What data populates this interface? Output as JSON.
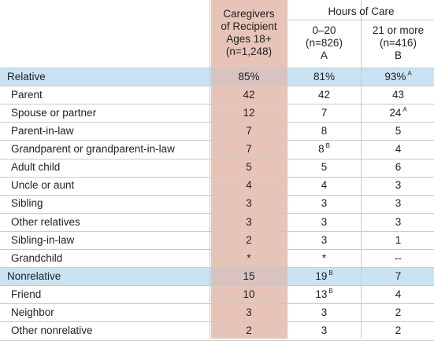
{
  "header": {
    "caregivers": [
      "Caregivers",
      "of Recipient",
      "Ages 18+",
      "(n=1,248)"
    ],
    "hours_group": "Hours of Care",
    "col_a": [
      "0–20",
      "(n=826)",
      "A"
    ],
    "col_b": [
      "21 or more",
      "(n=416)",
      "B"
    ]
  },
  "rows": [
    {
      "label": "Relative",
      "v1": "85%",
      "v2": "81%",
      "v2s": "",
      "v3": "93%",
      "v3s": "A",
      "group": true
    },
    {
      "label": "Parent",
      "v1": "42",
      "v2": "42",
      "v2s": "",
      "v3": "43",
      "v3s": "",
      "group": false
    },
    {
      "label": "Spouse or partner",
      "v1": "12",
      "v2": "7",
      "v2s": "",
      "v3": "24",
      "v3s": "A",
      "group": false
    },
    {
      "label": "Parent-in-law",
      "v1": "7",
      "v2": "8",
      "v2s": "",
      "v3": "5",
      "v3s": "",
      "group": false
    },
    {
      "label": "Grandparent or grandparent-in-law",
      "v1": "7",
      "v2": "8",
      "v2s": "B",
      "v3": "4",
      "v3s": "",
      "group": false
    },
    {
      "label": "Adult child",
      "v1": "5",
      "v2": "5",
      "v2s": "",
      "v3": "6",
      "v3s": "",
      "group": false
    },
    {
      "label": "Uncle or aunt",
      "v1": "4",
      "v2": "4",
      "v2s": "",
      "v3": "3",
      "v3s": "",
      "group": false
    },
    {
      "label": "Sibling",
      "v1": "3",
      "v2": "3",
      "v2s": "",
      "v3": "3",
      "v3s": "",
      "group": false
    },
    {
      "label": "Other relatives",
      "v1": "3",
      "v2": "3",
      "v2s": "",
      "v3": "3",
      "v3s": "",
      "group": false
    },
    {
      "label": "Sibling-in-law",
      "v1": "2",
      "v2": "3",
      "v2s": "",
      "v3": "1",
      "v3s": "",
      "group": false
    },
    {
      "label": "Grandchild",
      "v1": "*",
      "v2": "*",
      "v2s": "",
      "v3": "--",
      "v3s": "",
      "group": false
    },
    {
      "label": "Nonrelative",
      "v1": "15",
      "v2": "19",
      "v2s": "B",
      "v3": "7",
      "v3s": "",
      "group": true
    },
    {
      "label": "Friend",
      "v1": "10",
      "v2": "13",
      "v2s": "B",
      "v3": "4",
      "v3s": "",
      "group": false
    },
    {
      "label": "Neighbor",
      "v1": "3",
      "v2": "3",
      "v2s": "",
      "v3": "2",
      "v3s": "",
      "group": false
    },
    {
      "label": "Other nonrelative",
      "v1": "2",
      "v2": "3",
      "v2s": "",
      "v3": "2",
      "v3s": "",
      "group": false
    }
  ],
  "colors": {
    "caregivers_col": "#e8c4b8",
    "group_row": "#c9e3f3",
    "group_row_caregivers": "#d9c3c0",
    "grid_line": "#c9c9c9"
  }
}
